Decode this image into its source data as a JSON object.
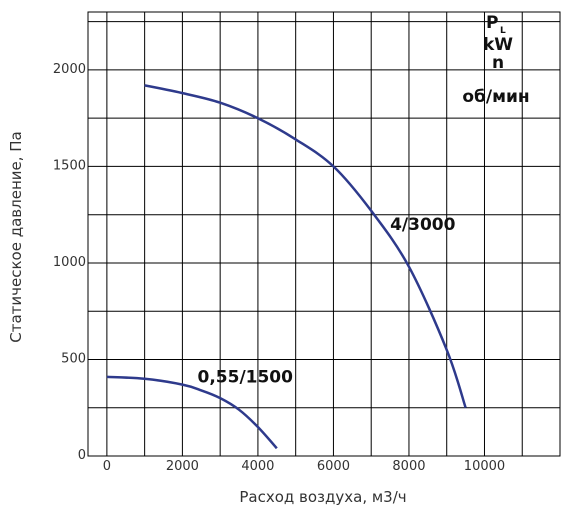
{
  "chart_data": {
    "type": "line",
    "xlabel": "Расход воздуха, м3/ч",
    "ylabel": "Статическое давление, Па",
    "xlim": [
      -500,
      12000
    ],
    "ylim": [
      0,
      2300
    ],
    "x_ticks": [
      0,
      2000,
      4000,
      6000,
      8000,
      10000
    ],
    "x_tick_labels": [
      "0",
      "2000",
      "4000",
      "6000",
      "8000",
      "10000"
    ],
    "y_ticks": [
      0,
      500,
      1000,
      1500,
      2000
    ],
    "y_tick_labels": [
      "0",
      "500",
      "1000",
      "1500",
      "2000"
    ],
    "x_grid_step": 1000,
    "y_grid_step": 250,
    "grid": true,
    "legend": {
      "p_label": "P",
      "p_subscript": "L",
      "kw_label": "kW",
      "n_label": "n",
      "rpm_label": "об/мин"
    },
    "series": [
      {
        "name": "4/3000",
        "color": "#2e3a8c",
        "x": [
          1000,
          2000,
          3000,
          4000,
          5000,
          6000,
          7000,
          8000,
          9000,
          9500
        ],
        "y": [
          1920,
          1880,
          1830,
          1750,
          1640,
          1500,
          1270,
          980,
          550,
          250
        ]
      },
      {
        "name": "0,55/1500",
        "color": "#2e3a8c",
        "x": [
          0,
          1000,
          2000,
          2500,
          3000,
          3500,
          4000,
          4500
        ],
        "y": [
          410,
          400,
          370,
          340,
          300,
          240,
          150,
          40
        ]
      }
    ]
  }
}
